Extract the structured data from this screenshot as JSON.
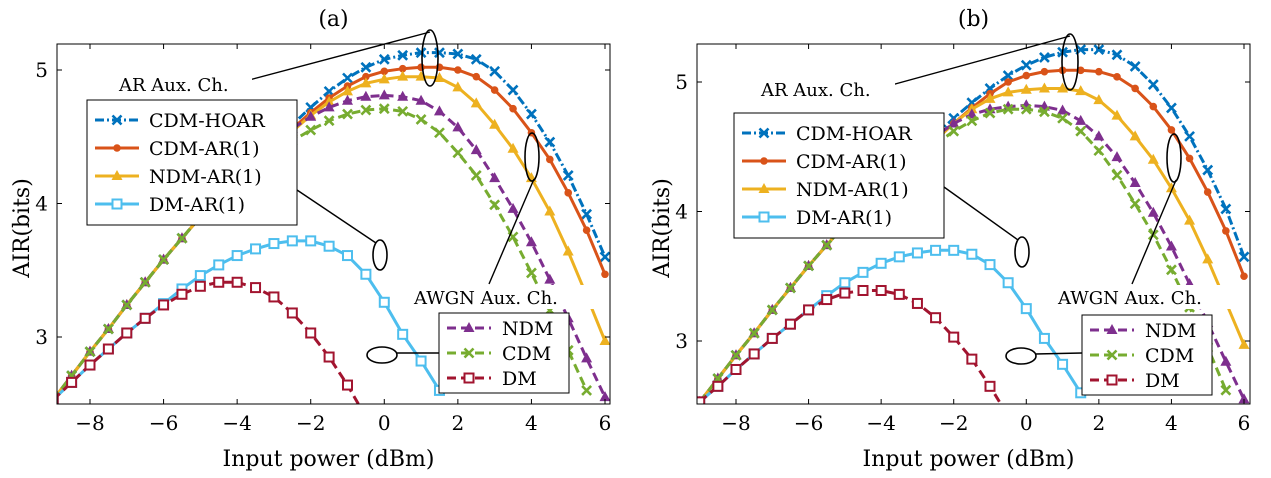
{
  "figure": {
    "x_ticks": [
      -8,
      -6,
      -4,
      -2,
      0,
      2,
      4,
      6
    ],
    "y_ticks": [
      3,
      4,
      5
    ],
    "tick_labels_x": [
      "−8",
      "−6",
      "−4",
      "−2",
      "0",
      "2",
      "4",
      "6"
    ],
    "tick_labels_y": [
      "3",
      "4",
      "5"
    ]
  },
  "colors": {
    "CDM-HOAR": "#0072BD",
    "CDM-AR(1)": "#D95319",
    "NDM-AR(1)": "#EDB120",
    "DM-AR(1)": "#4DBEEE",
    "NDM": "#7E2F8E",
    "CDM": "#77AC30",
    "DM": "#A2142F"
  },
  "chart_data": [
    {
      "type": "line",
      "title": "(a)",
      "xlabel": "Input power (dBm)",
      "ylabel": "AIR(bits)",
      "xlim": [
        -9.2,
        6.2
      ],
      "ylim": [
        2.5,
        5.2
      ],
      "grid": false,
      "legend_ar_title": "AR Aux. Ch.",
      "legend_awgn_title": "AWGN Aux. Ch.",
      "legend_ar": [
        "CDM-HOAR",
        "CDM-AR(1)",
        "NDM-AR(1)",
        "DM-AR(1)"
      ],
      "legend_awgn": [
        "NDM",
        "CDM",
        "DM"
      ],
      "x": [
        -9,
        -8.5,
        -8,
        -7.5,
        -7,
        -6.5,
        -6,
        -5.5,
        -5,
        -4.5,
        -4,
        -3.5,
        -3,
        -2.5,
        -2,
        -1.5,
        -1,
        -0.5,
        0,
        0.5,
        1,
        1.5,
        2,
        2.5,
        3,
        3.5,
        4,
        4.5,
        5,
        5.5,
        6
      ],
      "series": [
        {
          "name": "CDM-HOAR",
          "style": "dashdot",
          "marker": "x",
          "values": [
            2.53,
            2.71,
            2.89,
            3.06,
            3.24,
            3.41,
            3.58,
            3.74,
            3.9,
            4.06,
            4.2,
            4.33,
            4.45,
            4.59,
            4.72,
            4.84,
            4.94,
            5.02,
            5.08,
            5.11,
            5.13,
            5.13,
            5.12,
            5.08,
            4.99,
            4.85,
            4.67,
            4.46,
            4.21,
            3.92,
            3.6
          ]
        },
        {
          "name": "CDM-AR(1)",
          "style": "solid",
          "marker": "dot",
          "values": [
            2.53,
            2.71,
            2.89,
            3.06,
            3.24,
            3.41,
            3.58,
            3.74,
            3.9,
            4.06,
            4.2,
            4.32,
            4.43,
            4.56,
            4.68,
            4.79,
            4.88,
            4.95,
            4.99,
            5.01,
            5.02,
            5.02,
            5.0,
            4.95,
            4.85,
            4.71,
            4.53,
            4.33,
            4.08,
            3.8,
            3.47
          ]
        },
        {
          "name": "NDM-AR(1)",
          "style": "solid",
          "marker": "triangle",
          "values": [
            2.53,
            2.71,
            2.89,
            3.06,
            3.24,
            3.41,
            3.58,
            3.74,
            3.9,
            4.06,
            4.2,
            4.31,
            4.41,
            4.54,
            4.66,
            4.76,
            4.84,
            4.9,
            4.93,
            4.95,
            4.95,
            4.94,
            4.87,
            4.75,
            4.59,
            4.41,
            4.19,
            3.94,
            3.64,
            3.31,
            2.97
          ]
        },
        {
          "name": "DM-AR(1)",
          "style": "solid",
          "marker": "square",
          "values": [
            2.53,
            2.66,
            2.79,
            2.91,
            3.03,
            3.14,
            3.25,
            3.36,
            3.46,
            3.54,
            3.61,
            3.66,
            3.7,
            3.72,
            3.72,
            3.68,
            3.61,
            3.47,
            3.26,
            3.02,
            2.82,
            2.6,
            null,
            null,
            null,
            null,
            null,
            null,
            null,
            null,
            null
          ]
        },
        {
          "name": "NDM",
          "style": "dashed",
          "marker": "triangle",
          "values": [
            2.53,
            2.71,
            2.89,
            3.06,
            3.24,
            3.41,
            3.58,
            3.74,
            3.9,
            4.05,
            4.19,
            4.33,
            4.45,
            4.56,
            4.65,
            4.72,
            4.77,
            4.8,
            4.81,
            4.8,
            4.77,
            4.69,
            4.57,
            4.4,
            4.19,
            3.96,
            3.71,
            3.43,
            3.14,
            2.84,
            2.55
          ]
        },
        {
          "name": "CDM",
          "style": "dashed",
          "marker": "x",
          "values": [
            2.53,
            2.71,
            2.89,
            3.06,
            3.24,
            3.41,
            3.58,
            3.74,
            3.9,
            4.04,
            4.16,
            4.27,
            4.37,
            4.47,
            4.55,
            4.62,
            4.67,
            4.7,
            4.71,
            4.69,
            4.63,
            4.53,
            4.38,
            4.21,
            3.99,
            3.75,
            3.48,
            3.2,
            2.9,
            2.6,
            null
          ]
        },
        {
          "name": "DM",
          "style": "dashed",
          "marker": "square",
          "values": [
            2.53,
            2.66,
            2.79,
            2.91,
            3.03,
            3.14,
            3.24,
            3.32,
            3.38,
            3.41,
            3.41,
            3.37,
            3.3,
            3.18,
            3.03,
            2.85,
            2.64,
            2.4,
            null,
            null,
            null,
            null,
            null,
            null,
            null,
            null,
            null,
            null,
            null,
            null,
            null
          ]
        }
      ]
    },
    {
      "type": "line",
      "title": "(b)",
      "xlabel": "Input power (dBm)",
      "ylabel": "AIR(bits)",
      "xlim": [
        -9.2,
        6.2
      ],
      "ylim": [
        2.5,
        5.3
      ],
      "grid": false,
      "legend_ar_title": "AR Aux. Ch.",
      "legend_awgn_title": "AWGN Aux. Ch.",
      "legend_ar": [
        "CDM-HOAR",
        "CDM-AR(1)",
        "NDM-AR(1)",
        "DM-AR(1)"
      ],
      "legend_awgn": [
        "NDM",
        "CDM",
        "DM"
      ],
      "x": [
        -9,
        -8.5,
        -8,
        -7.5,
        -7,
        -6.5,
        -6,
        -5.5,
        -5,
        -4.5,
        -4,
        -3.5,
        -3,
        -2.5,
        -2,
        -1.5,
        -1,
        -0.5,
        0,
        0.5,
        1,
        1.5,
        2,
        2.5,
        3,
        3.5,
        4,
        4.5,
        5,
        5.5,
        6
      ],
      "series": [
        {
          "name": "CDM-HOAR",
          "style": "dashdot",
          "marker": "x",
          "values": [
            2.53,
            2.71,
            2.89,
            3.06,
            3.24,
            3.41,
            3.58,
            3.74,
            3.9,
            4.06,
            4.2,
            4.33,
            4.46,
            4.59,
            4.72,
            4.84,
            4.95,
            5.05,
            5.13,
            5.19,
            5.23,
            5.25,
            5.25,
            5.21,
            5.12,
            4.98,
            4.8,
            4.58,
            4.32,
            4.02,
            3.65
          ]
        },
        {
          "name": "CDM-AR(1)",
          "style": "solid",
          "marker": "dot",
          "values": [
            2.53,
            2.71,
            2.89,
            3.06,
            3.24,
            3.41,
            3.58,
            3.74,
            3.9,
            4.06,
            4.2,
            4.32,
            4.43,
            4.56,
            4.68,
            4.8,
            4.91,
            5.0,
            5.05,
            5.08,
            5.09,
            5.09,
            5.08,
            5.04,
            4.95,
            4.81,
            4.63,
            4.41,
            4.15,
            3.85,
            3.5
          ]
        },
        {
          "name": "NDM-AR(1)",
          "style": "solid",
          "marker": "triangle",
          "values": [
            2.53,
            2.71,
            2.89,
            3.06,
            3.24,
            3.41,
            3.58,
            3.74,
            3.9,
            4.06,
            4.2,
            4.31,
            4.42,
            4.55,
            4.68,
            4.79,
            4.87,
            4.92,
            4.94,
            4.95,
            4.95,
            4.93,
            4.86,
            4.74,
            4.58,
            4.4,
            4.18,
            3.93,
            3.63,
            3.3,
            2.97
          ]
        },
        {
          "name": "DM-AR(1)",
          "style": "solid",
          "marker": "square",
          "values": [
            2.53,
            2.65,
            2.78,
            2.9,
            3.02,
            3.13,
            3.24,
            3.35,
            3.45,
            3.53,
            3.6,
            3.65,
            3.68,
            3.7,
            3.7,
            3.67,
            3.59,
            3.45,
            3.25,
            3.02,
            2.82,
            2.6,
            null,
            null,
            null,
            null,
            null,
            null,
            null,
            null,
            null
          ]
        },
        {
          "name": "NDM",
          "style": "dashed",
          "marker": "triangle",
          "values": [
            2.53,
            2.71,
            2.89,
            3.06,
            3.24,
            3.41,
            3.58,
            3.74,
            3.9,
            4.05,
            4.19,
            4.33,
            4.46,
            4.58,
            4.68,
            4.75,
            4.79,
            4.81,
            4.82,
            4.81,
            4.78,
            4.7,
            4.58,
            4.42,
            4.22,
            3.99,
            3.73,
            3.44,
            3.14,
            2.84,
            2.55
          ]
        },
        {
          "name": "CDM",
          "style": "dashed",
          "marker": "x",
          "values": [
            2.53,
            2.71,
            2.89,
            3.06,
            3.24,
            3.41,
            3.58,
            3.74,
            3.9,
            4.04,
            4.17,
            4.29,
            4.41,
            4.52,
            4.62,
            4.7,
            4.76,
            4.79,
            4.79,
            4.77,
            4.72,
            4.62,
            4.47,
            4.28,
            4.06,
            3.82,
            3.55,
            3.26,
            2.95,
            2.62,
            null
          ]
        },
        {
          "name": "DM",
          "style": "dashed",
          "marker": "square",
          "values": [
            2.53,
            2.65,
            2.78,
            2.9,
            3.02,
            3.13,
            3.24,
            3.32,
            3.37,
            3.39,
            3.39,
            3.36,
            3.29,
            3.18,
            3.03,
            2.86,
            2.65,
            2.42,
            null,
            null,
            null,
            null,
            null,
            null,
            null,
            null,
            null,
            null,
            null,
            null,
            null
          ]
        }
      ]
    }
  ]
}
